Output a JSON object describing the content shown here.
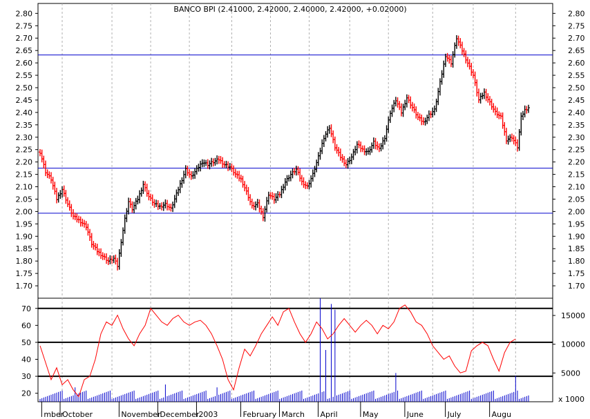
{
  "chart_data": [
    {
      "type": "ohlc",
      "title": "BANCO BPI (2.41000, 2.42000, 2.40000, 2.42000, +0.02000)",
      "ylim": [
        1.65,
        2.84
      ],
      "yticks": [
        "2.80",
        "2.75",
        "2.70",
        "2.65",
        "2.60",
        "2.55",
        "2.50",
        "2.45",
        "2.40",
        "2.35",
        "2.30",
        "2.25",
        "2.20",
        "2.15",
        "2.10",
        "2.05",
        "2.00",
        "1.95",
        "1.90",
        "1.85",
        "1.80",
        "1.75",
        "1.70"
      ],
      "horizontal_lines": [
        2.632,
        2.175,
        1.993
      ],
      "up_color": "#000000",
      "down_color": "#ff0000",
      "line_color": "#0000cc",
      "close_series": [
        {
          "x": 0,
          "y": 2.24
        },
        {
          "x": 3,
          "y": 2.16
        },
        {
          "x": 6,
          "y": 2.13
        },
        {
          "x": 9,
          "y": 2.05
        },
        {
          "x": 12,
          "y": 2.09
        },
        {
          "x": 15,
          "y": 2.03
        },
        {
          "x": 18,
          "y": 1.98
        },
        {
          "x": 22,
          "y": 1.96
        },
        {
          "x": 25,
          "y": 1.94
        },
        {
          "x": 28,
          "y": 1.87
        },
        {
          "x": 31,
          "y": 1.84
        },
        {
          "x": 34,
          "y": 1.82
        },
        {
          "x": 37,
          "y": 1.8
        },
        {
          "x": 40,
          "y": 1.81
        },
        {
          "x": 42,
          "y": 1.78
        },
        {
          "x": 44,
          "y": 1.88
        },
        {
          "x": 46,
          "y": 1.97
        },
        {
          "x": 48,
          "y": 2.04
        },
        {
          "x": 50,
          "y": 2.01
        },
        {
          "x": 53,
          "y": 2.05
        },
        {
          "x": 56,
          "y": 2.11
        },
        {
          "x": 59,
          "y": 2.06
        },
        {
          "x": 62,
          "y": 2.03
        },
        {
          "x": 65,
          "y": 2.02
        },
        {
          "x": 68,
          "y": 2.03
        },
        {
          "x": 71,
          "y": 2.01
        },
        {
          "x": 73,
          "y": 2.05
        },
        {
          "x": 76,
          "y": 2.11
        },
        {
          "x": 79,
          "y": 2.17
        },
        {
          "x": 82,
          "y": 2.14
        },
        {
          "x": 85,
          "y": 2.17
        },
        {
          "x": 88,
          "y": 2.2
        },
        {
          "x": 91,
          "y": 2.19
        },
        {
          "x": 94,
          "y": 2.2
        },
        {
          "x": 97,
          "y": 2.21
        },
        {
          "x": 100,
          "y": 2.19
        },
        {
          "x": 103,
          "y": 2.18
        },
        {
          "x": 106,
          "y": 2.15
        },
        {
          "x": 109,
          "y": 2.13
        },
        {
          "x": 112,
          "y": 2.08
        },
        {
          "x": 115,
          "y": 2.02
        },
        {
          "x": 118,
          "y": 2.03
        },
        {
          "x": 121,
          "y": 1.98
        },
        {
          "x": 124,
          "y": 2.07
        },
        {
          "x": 127,
          "y": 2.05
        },
        {
          "x": 130,
          "y": 2.07
        },
        {
          "x": 133,
          "y": 2.12
        },
        {
          "x": 136,
          "y": 2.15
        },
        {
          "x": 139,
          "y": 2.17
        },
        {
          "x": 142,
          "y": 2.12
        },
        {
          "x": 145,
          "y": 2.1
        },
        {
          "x": 148,
          "y": 2.15
        },
        {
          "x": 151,
          "y": 2.22
        },
        {
          "x": 154,
          "y": 2.3
        },
        {
          "x": 157,
          "y": 2.34
        },
        {
          "x": 160,
          "y": 2.26
        },
        {
          "x": 163,
          "y": 2.22
        },
        {
          "x": 166,
          "y": 2.19
        },
        {
          "x": 169,
          "y": 2.22
        },
        {
          "x": 172,
          "y": 2.27
        },
        {
          "x": 175,
          "y": 2.25
        },
        {
          "x": 178,
          "y": 2.24
        },
        {
          "x": 181,
          "y": 2.28
        },
        {
          "x": 184,
          "y": 2.25
        },
        {
          "x": 187,
          "y": 2.3
        },
        {
          "x": 190,
          "y": 2.4
        },
        {
          "x": 193,
          "y": 2.45
        },
        {
          "x": 196,
          "y": 2.4
        },
        {
          "x": 199,
          "y": 2.46
        },
        {
          "x": 202,
          "y": 2.42
        },
        {
          "x": 205,
          "y": 2.38
        },
        {
          "x": 208,
          "y": 2.36
        },
        {
          "x": 211,
          "y": 2.39
        },
        {
          "x": 214,
          "y": 2.41
        },
        {
          "x": 217,
          "y": 2.52
        },
        {
          "x": 220,
          "y": 2.63
        },
        {
          "x": 223,
          "y": 2.6
        },
        {
          "x": 226,
          "y": 2.7
        },
        {
          "x": 229,
          "y": 2.65
        },
        {
          "x": 232,
          "y": 2.6
        },
        {
          "x": 235,
          "y": 2.55
        },
        {
          "x": 238,
          "y": 2.45
        },
        {
          "x": 241,
          "y": 2.48
        },
        {
          "x": 244,
          "y": 2.44
        },
        {
          "x": 247,
          "y": 2.4
        },
        {
          "x": 250,
          "y": 2.38
        },
        {
          "x": 253,
          "y": 2.29
        },
        {
          "x": 256,
          "y": 2.3
        },
        {
          "x": 259,
          "y": 2.26
        },
        {
          "x": 261,
          "y": 2.38
        },
        {
          "x": 263,
          "y": 2.41
        },
        {
          "x": 265,
          "y": 2.42
        }
      ],
      "x_max": 265,
      "x_labels": [
        {
          "x": 2,
          "label": "mber"
        },
        {
          "x": 12,
          "label": "October"
        },
        {
          "x": 44,
          "label": "November"
        },
        {
          "x": 65,
          "label": "December"
        },
        {
          "x": 86,
          "label": "2003"
        },
        {
          "x": 110,
          "label": "February"
        },
        {
          "x": 131,
          "label": "March"
        },
        {
          "x": 152,
          "label": "April"
        },
        {
          "x": 175,
          "label": "May"
        },
        {
          "x": 199,
          "label": "June"
        },
        {
          "x": 221,
          "label": "July"
        },
        {
          "x": 245,
          "label": "Augu"
        }
      ],
      "vgrid_x": [
        12,
        39,
        60,
        81,
        104,
        125,
        146,
        168,
        189,
        213,
        235,
        258
      ]
    },
    {
      "type": "line",
      "name": "indicator",
      "ylim": [
        15,
        76
      ],
      "yticks": [
        "70",
        "60",
        "50",
        "40",
        "30",
        "20"
      ],
      "horizontal_lines": [
        70,
        50,
        30
      ],
      "color": "#ff0000",
      "series_points": [
        [
          0,
          48
        ],
        [
          3,
          38
        ],
        [
          6,
          28
        ],
        [
          9,
          35
        ],
        [
          12,
          25
        ],
        [
          15,
          28
        ],
        [
          18,
          22
        ],
        [
          21,
          18
        ],
        [
          24,
          28
        ],
        [
          27,
          30
        ],
        [
          30,
          40
        ],
        [
          33,
          55
        ],
        [
          36,
          62
        ],
        [
          39,
          60
        ],
        [
          42,
          66
        ],
        [
          45,
          58
        ],
        [
          48,
          52
        ],
        [
          51,
          48
        ],
        [
          54,
          55
        ],
        [
          57,
          60
        ],
        [
          60,
          70
        ],
        [
          63,
          66
        ],
        [
          66,
          62
        ],
        [
          69,
          60
        ],
        [
          72,
          64
        ],
        [
          75,
          66
        ],
        [
          78,
          62
        ],
        [
          81,
          60
        ],
        [
          84,
          62
        ],
        [
          87,
          63
        ],
        [
          90,
          60
        ],
        [
          93,
          55
        ],
        [
          96,
          48
        ],
        [
          99,
          40
        ],
        [
          102,
          28
        ],
        [
          105,
          22
        ],
        [
          108,
          35
        ],
        [
          111,
          46
        ],
        [
          114,
          42
        ],
        [
          117,
          48
        ],
        [
          120,
          55
        ],
        [
          123,
          60
        ],
        [
          126,
          65
        ],
        [
          129,
          60
        ],
        [
          132,
          68
        ],
        [
          135,
          70
        ],
        [
          138,
          62
        ],
        [
          141,
          55
        ],
        [
          144,
          50
        ],
        [
          147,
          55
        ],
        [
          150,
          62
        ],
        [
          153,
          58
        ],
        [
          156,
          52
        ],
        [
          159,
          55
        ],
        [
          162,
          60
        ],
        [
          165,
          64
        ],
        [
          168,
          60
        ],
        [
          171,
          56
        ],
        [
          174,
          60
        ],
        [
          177,
          63
        ],
        [
          180,
          60
        ],
        [
          183,
          55
        ],
        [
          186,
          60
        ],
        [
          189,
          58
        ],
        [
          192,
          62
        ],
        [
          195,
          70
        ],
        [
          198,
          72
        ],
        [
          201,
          68
        ],
        [
          204,
          62
        ],
        [
          207,
          60
        ],
        [
          210,
          55
        ],
        [
          213,
          48
        ],
        [
          216,
          44
        ],
        [
          219,
          40
        ],
        [
          222,
          42
        ],
        [
          225,
          36
        ],
        [
          228,
          32
        ],
        [
          231,
          33
        ],
        [
          234,
          45
        ],
        [
          237,
          48
        ],
        [
          240,
          50
        ],
        [
          243,
          48
        ],
        [
          246,
          40
        ],
        [
          249,
          33
        ],
        [
          252,
          44
        ],
        [
          255,
          50
        ],
        [
          258,
          52
        ]
      ],
      "yticks_right": [
        "15000",
        "10000",
        "5000"
      ],
      "right_unit": "x 1000",
      "volume_color": "#0000cc"
    }
  ]
}
